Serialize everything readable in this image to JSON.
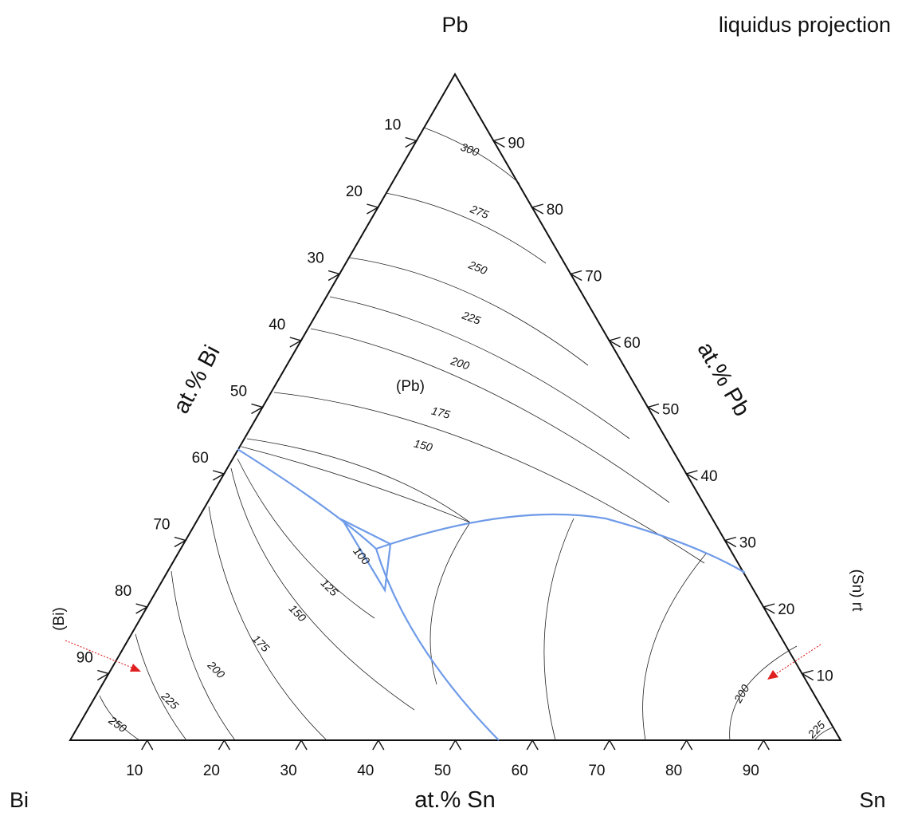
{
  "title": "liquidus projection",
  "corners": {
    "top": "Pb",
    "left": "Bi",
    "right": "Sn"
  },
  "axes": {
    "bottom": {
      "label": "at.% Sn",
      "ticks": [
        "10",
        "20",
        "30",
        "40",
        "50",
        "60",
        "70",
        "80",
        "90"
      ]
    },
    "left": {
      "label": "at.% Bi",
      "ticks": [
        "10",
        "20",
        "30",
        "40",
        "50",
        "60",
        "70",
        "80",
        "90"
      ]
    },
    "right": {
      "label": "at.% Pb",
      "ticks": [
        "90",
        "80",
        "70",
        "60",
        "50",
        "40",
        "30",
        "20",
        "10"
      ]
    }
  },
  "phase_labels": {
    "pb": "(Pb)",
    "bi": "(Bi)",
    "sn": "(Sn) rt"
  },
  "isotherm_labels": {
    "pb_300": "300",
    "pb_275": "275",
    "pb_250": "250",
    "pb_225": "225",
    "pb_200": "200",
    "pb_175": "175",
    "pb_150": "150",
    "bi_250": "250",
    "bi_225": "225",
    "bi_200": "200",
    "bi_175": "175",
    "bi_150": "150",
    "bi_125": "125",
    "bi_100": "100",
    "sn_200": "200",
    "sn_225": "225"
  },
  "colors": {
    "monovariant": "#6f9be8",
    "arrow": "#e02020",
    "frame": "#111111"
  }
}
